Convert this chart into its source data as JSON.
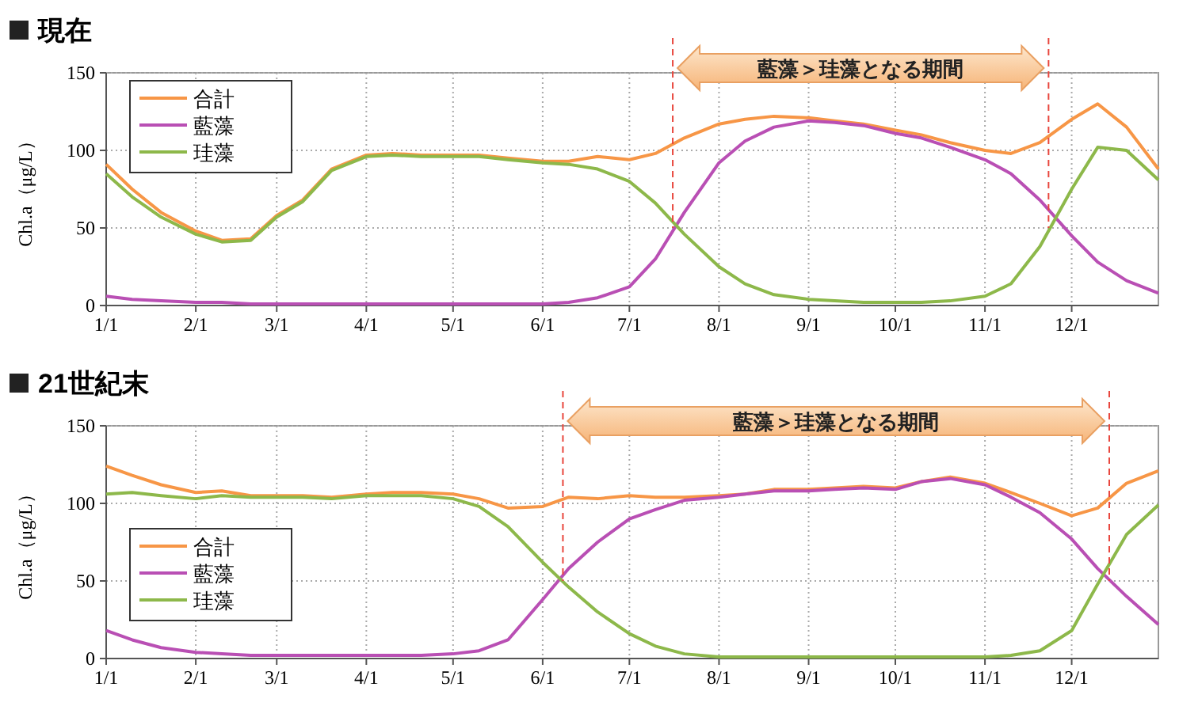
{
  "chart_data": [
    {
      "type": "line",
      "title": "現在",
      "ylabel": "Chl.a（μg/L）",
      "xlim": [
        "--01-01",
        "--12-31"
      ],
      "xticks": [
        {
          "value": "--01-01",
          "label": "1/1"
        },
        {
          "value": "--02-01",
          "label": "2/1"
        },
        {
          "value": "--03-01",
          "label": "3/1"
        },
        {
          "value": "--04-01",
          "label": "4/1"
        },
        {
          "value": "--05-01",
          "label": "5/1"
        },
        {
          "value": "--06-01",
          "label": "6/1"
        },
        {
          "value": "--07-01",
          "label": "7/1"
        },
        {
          "value": "--08-01",
          "label": "8/1"
        },
        {
          "value": "--09-01",
          "label": "9/1"
        },
        {
          "value": "--10-01",
          "label": "10/1"
        },
        {
          "value": "--11-01",
          "label": "11/1"
        },
        {
          "value": "--12-01",
          "label": "12/1"
        }
      ],
      "ylim": [
        0,
        150
      ],
      "yticks": [
        0,
        50,
        100,
        150
      ],
      "grid": true,
      "legend": "top left",
      "line_style": "solid",
      "marker": "none",
      "x": [
        "--01-01",
        "--01-10",
        "--01-20",
        "--02-01",
        "--02-10",
        "--02-20",
        "--03-01",
        "--03-10",
        "--03-20",
        "--04-01",
        "--04-10",
        "--04-20",
        "--05-01",
        "--05-10",
        "--05-20",
        "--06-01",
        "--06-10",
        "--06-20",
        "--07-01",
        "--07-10",
        "--07-20",
        "--08-01",
        "--08-10",
        "--08-20",
        "--09-01",
        "--09-10",
        "--09-20",
        "--10-01",
        "--10-10",
        "--10-20",
        "--11-01",
        "--11-10",
        "--11-20",
        "--12-01",
        "--12-10",
        "--12-20",
        "--12-31"
      ],
      "series": [
        {
          "name": "合計",
          "color": "#f79646",
          "values": [
            91,
            75,
            60,
            48,
            42,
            43,
            58,
            68,
            88,
            97,
            98,
            97,
            97,
            97,
            95,
            93,
            93,
            96,
            94,
            98,
            108,
            117,
            120,
            122,
            121,
            119,
            117,
            113,
            110,
            105,
            100,
            98,
            105,
            120,
            130,
            115,
            88
          ]
        },
        {
          "name": "藍藻",
          "color": "#b94fb4",
          "values": [
            6,
            4,
            3,
            2,
            2,
            1,
            1,
            1,
            1,
            1,
            1,
            1,
            1,
            1,
            1,
            1,
            2,
            5,
            12,
            30,
            60,
            92,
            106,
            115,
            119,
            118,
            116,
            111,
            108,
            102,
            94,
            85,
            68,
            45,
            28,
            16,
            8
          ]
        },
        {
          "name": "珪藻",
          "color": "#8db84a",
          "values": [
            85,
            70,
            57,
            46,
            41,
            42,
            57,
            67,
            87,
            96,
            97,
            96,
            96,
            96,
            94,
            92,
            91,
            88,
            80,
            66,
            46,
            25,
            14,
            7,
            4,
            3,
            2,
            2,
            2,
            3,
            6,
            14,
            38,
            75,
            102,
            100,
            81
          ]
        }
      ],
      "ref_lines": [
        {
          "axis": "x",
          "value": "--07-16",
          "color": "#e8453c",
          "line_style": "dashed"
        },
        {
          "axis": "x",
          "value": "--11-23",
          "color": "#e8453c",
          "line_style": "dashed"
        }
      ],
      "annotations": [
        "藍藻＞珪藻となる期間"
      ]
    },
    {
      "type": "line",
      "title": "21世紀末",
      "ylabel": "Chl.a（μg/L）",
      "xlim": [
        "--01-01",
        "--12-31"
      ],
      "xticks": [
        {
          "value": "--01-01",
          "label": "1/1"
        },
        {
          "value": "--02-01",
          "label": "2/1"
        },
        {
          "value": "--03-01",
          "label": "3/1"
        },
        {
          "value": "--04-01",
          "label": "4/1"
        },
        {
          "value": "--05-01",
          "label": "5/1"
        },
        {
          "value": "--06-01",
          "label": "6/1"
        },
        {
          "value": "--07-01",
          "label": "7/1"
        },
        {
          "value": "--08-01",
          "label": "8/1"
        },
        {
          "value": "--09-01",
          "label": "9/1"
        },
        {
          "value": "--10-01",
          "label": "10/1"
        },
        {
          "value": "--11-01",
          "label": "11/1"
        },
        {
          "value": "--12-01",
          "label": "12/1"
        }
      ],
      "ylim": [
        0,
        150
      ],
      "yticks": [
        0,
        50,
        100,
        150
      ],
      "grid": true,
      "legend": "left",
      "line_style": "solid",
      "marker": "none",
      "x": [
        "--01-01",
        "--01-10",
        "--01-20",
        "--02-01",
        "--02-10",
        "--02-20",
        "--03-01",
        "--03-10",
        "--03-20",
        "--04-01",
        "--04-10",
        "--04-20",
        "--05-01",
        "--05-10",
        "--05-20",
        "--06-01",
        "--06-10",
        "--06-20",
        "--07-01",
        "--07-10",
        "--07-20",
        "--08-01",
        "--08-10",
        "--08-20",
        "--09-01",
        "--09-10",
        "--09-20",
        "--10-01",
        "--10-10",
        "--10-20",
        "--11-01",
        "--11-10",
        "--11-20",
        "--12-01",
        "--12-10",
        "--12-20",
        "--12-31"
      ],
      "series": [
        {
          "name": "合計",
          "color": "#f79646",
          "values": [
            124,
            118,
            112,
            107,
            108,
            105,
            105,
            105,
            104,
            106,
            107,
            107,
            106,
            103,
            97,
            98,
            104,
            103,
            105,
            104,
            104,
            105,
            106,
            109,
            109,
            110,
            111,
            110,
            114,
            117,
            113,
            107,
            100,
            92,
            97,
            113,
            121
          ]
        },
        {
          "name": "藍藻",
          "color": "#b94fb4",
          "values": [
            18,
            12,
            7,
            4,
            3,
            2,
            2,
            2,
            2,
            2,
            2,
            2,
            3,
            5,
            12,
            38,
            58,
            75,
            90,
            96,
            102,
            104,
            106,
            108,
            108,
            109,
            110,
            109,
            114,
            116,
            112,
            104,
            94,
            77,
            58,
            40,
            22
          ]
        },
        {
          "name": "珪藻",
          "color": "#8db84a",
          "values": [
            106,
            107,
            105,
            103,
            105,
            104,
            104,
            104,
            103,
            105,
            105,
            105,
            103,
            98,
            85,
            62,
            46,
            30,
            16,
            8,
            3,
            1,
            1,
            1,
            1,
            1,
            1,
            1,
            1,
            1,
            1,
            2,
            5,
            18,
            48,
            80,
            99
          ]
        }
      ],
      "ref_lines": [
        {
          "axis": "x",
          "value": "--06-08",
          "color": "#e8453c",
          "line_style": "dashed"
        },
        {
          "axis": "x",
          "value": "--12-14",
          "color": "#e8453c",
          "line_style": "dashed"
        }
      ],
      "annotations": [
        "藍藻＞珪藻となる期間"
      ]
    }
  ]
}
